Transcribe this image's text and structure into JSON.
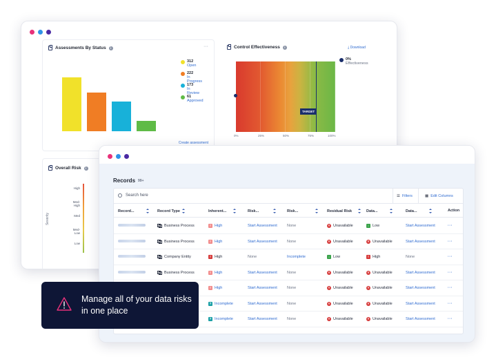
{
  "colors": {
    "dot1": "#e8317a",
    "dot2": "#2f93e8",
    "dot3": "#4b2aa3",
    "yellow": "#f1e12a",
    "orange": "#f07d24",
    "cyan": "#18b1d9",
    "green": "#5fbb46",
    "danger": "#d63a3a",
    "warn": "#f28c8c",
    "navy": "#0e1636"
  },
  "assessments": {
    "title": "Assessments By Status",
    "more": "···",
    "create_link": "Create assessment",
    "legend": [
      {
        "value": "312",
        "label": "Open",
        "color": "#f1e12a"
      },
      {
        "value": "222",
        "label": "In Progress",
        "color": "#f07d24"
      },
      {
        "value": "173",
        "label": "In Review",
        "color": "#18b1d9"
      },
      {
        "value": "61",
        "label": "Approved",
        "color": "#5fbb46"
      }
    ]
  },
  "control": {
    "title": "Control Effectiveness",
    "download": "Download",
    "legend_value": "0%",
    "legend_label": "Effectiveness",
    "target_label": "TARGET",
    "ticks": [
      "0%",
      "25%",
      "50%",
      "75%",
      "100%"
    ]
  },
  "overall_risk": {
    "title": "Overall Risk",
    "ylabel": "Severity",
    "levels": [
      "High",
      "Med-High",
      "Med",
      "Med-Low",
      "Low"
    ]
  },
  "records": {
    "title": "Records",
    "count": "99+",
    "search_placeholder": "Search here",
    "filters_label": "Filters",
    "edit_columns_label": "Edit Columns",
    "columns": [
      "Record...",
      "Record Type",
      "Inherent...",
      "Risk...",
      "Risk...",
      "Residual Risk",
      "Data...",
      "Data...",
      "Action"
    ],
    "rows": [
      {
        "type": "Business Process",
        "inherent": "High",
        "risk1": "Start Assessment",
        "risk2": "None",
        "residual": "Unavailable",
        "data1": "Low",
        "data2": "Start Assessment"
      },
      {
        "type": "Business Process",
        "inherent": "High",
        "risk1": "Start Assessment",
        "risk2": "None",
        "residual": "Unavailable",
        "data1": "Unavailable",
        "data2": "Start Assessment"
      },
      {
        "type": "Company Entity",
        "inherent": "High",
        "risk1": "None",
        "risk2": "Incomplete",
        "residual": "Low",
        "data1": "High",
        "data2": "None"
      },
      {
        "type": "Business Process",
        "inherent": "High",
        "risk1": "Start Assessment",
        "risk2": "None",
        "residual": "Unavailable",
        "data1": "Unavailable",
        "data2": "Start Assessment"
      },
      {
        "type": "",
        "inherent": "High",
        "risk1": "Start Assessment",
        "risk2": "None",
        "residual": "Unavailable",
        "data1": "Unavailable",
        "data2": "Start Assessment"
      },
      {
        "type": "",
        "inherent": "Incomplete",
        "risk1": "Start Assessment",
        "risk2": "None",
        "residual": "Unavailable",
        "data1": "Unavailable",
        "data2": "Start Assessment"
      },
      {
        "type": "",
        "inherent": "Incomplete",
        "risk1": "Start Assessment",
        "risk2": "None",
        "residual": "Unavailable",
        "data1": "Unavailable",
        "data2": "Start Assessment"
      }
    ],
    "action": "···"
  },
  "callout": {
    "text": "Manage all of your data risks in one place"
  },
  "chart_data": [
    {
      "type": "bar",
      "title": "Assessments By Status",
      "categories": [
        "Open",
        "In Progress",
        "In Review",
        "Approved"
      ],
      "values": [
        312,
        222,
        173,
        61
      ]
    }
  ]
}
